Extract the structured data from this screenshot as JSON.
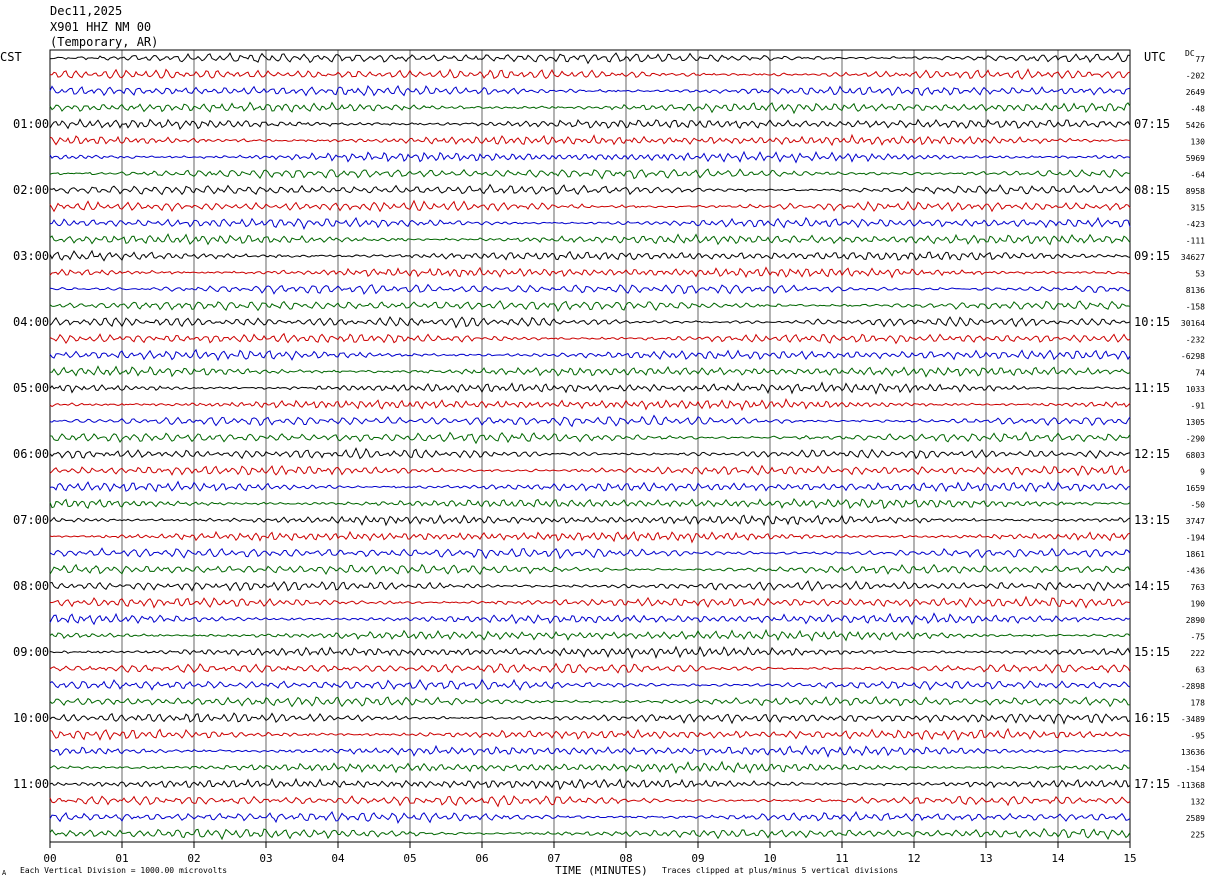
{
  "header": {
    "date": "Dec11,2025",
    "station": "X901 HHZ NM 00",
    "location": "(Temporary, AR)"
  },
  "chart_data": {
    "type": "line",
    "title": "",
    "xlabel": "TIME (MINUTES)",
    "ylabel": "",
    "left_axis_label": "CST",
    "right_axis_label": "UTC",
    "dc_label": "DC",
    "xlim": [
      0,
      15
    ],
    "x_tick_labels": [
      "00",
      "01",
      "02",
      "03",
      "04",
      "05",
      "06",
      "07",
      "08",
      "09",
      "10",
      "11",
      "12",
      "13",
      "14",
      "15"
    ],
    "grid": true,
    "trace_count": 48,
    "trace_colors": [
      "#000000",
      "#cc0000",
      "#0000cc",
      "#006600"
    ],
    "left_hour_labels": [
      "01:00",
      "02:00",
      "03:00",
      "04:00",
      "05:00",
      "06:00",
      "07:00",
      "08:00",
      "09:00",
      "10:00",
      "11:00"
    ],
    "right_hour_labels": [
      "07:15",
      "08:15",
      "09:15",
      "10:15",
      "11:15",
      "12:15",
      "13:15",
      "14:15",
      "15:15",
      "16:15",
      "17:15"
    ],
    "dc_offsets": [
      "77",
      "-202",
      "2649",
      "-48",
      "5426",
      "130",
      "5969",
      "-64",
      "8958",
      "315",
      "-423",
      "-111",
      "34627",
      "53",
      "8136",
      "-158",
      "30164",
      "-232",
      "-6298",
      "74",
      "1033",
      "-91",
      "1305",
      "-290",
      "6803",
      "9",
      "1659",
      "-50",
      "3747",
      "-194",
      "1861",
      "-436",
      "763",
      "190",
      "2890",
      "-75",
      "222",
      "63",
      "-2898",
      "178",
      "-3489",
      "-95",
      "13636",
      "-154",
      "-11368",
      "132",
      "2589",
      "225"
    ]
  },
  "footer": {
    "scale_note": "Each Vertical Division = 1000.00 microvolts",
    "clip_note": "Traces clipped at plus/minus 5 vertical divisions",
    "corner_mark": "A"
  }
}
